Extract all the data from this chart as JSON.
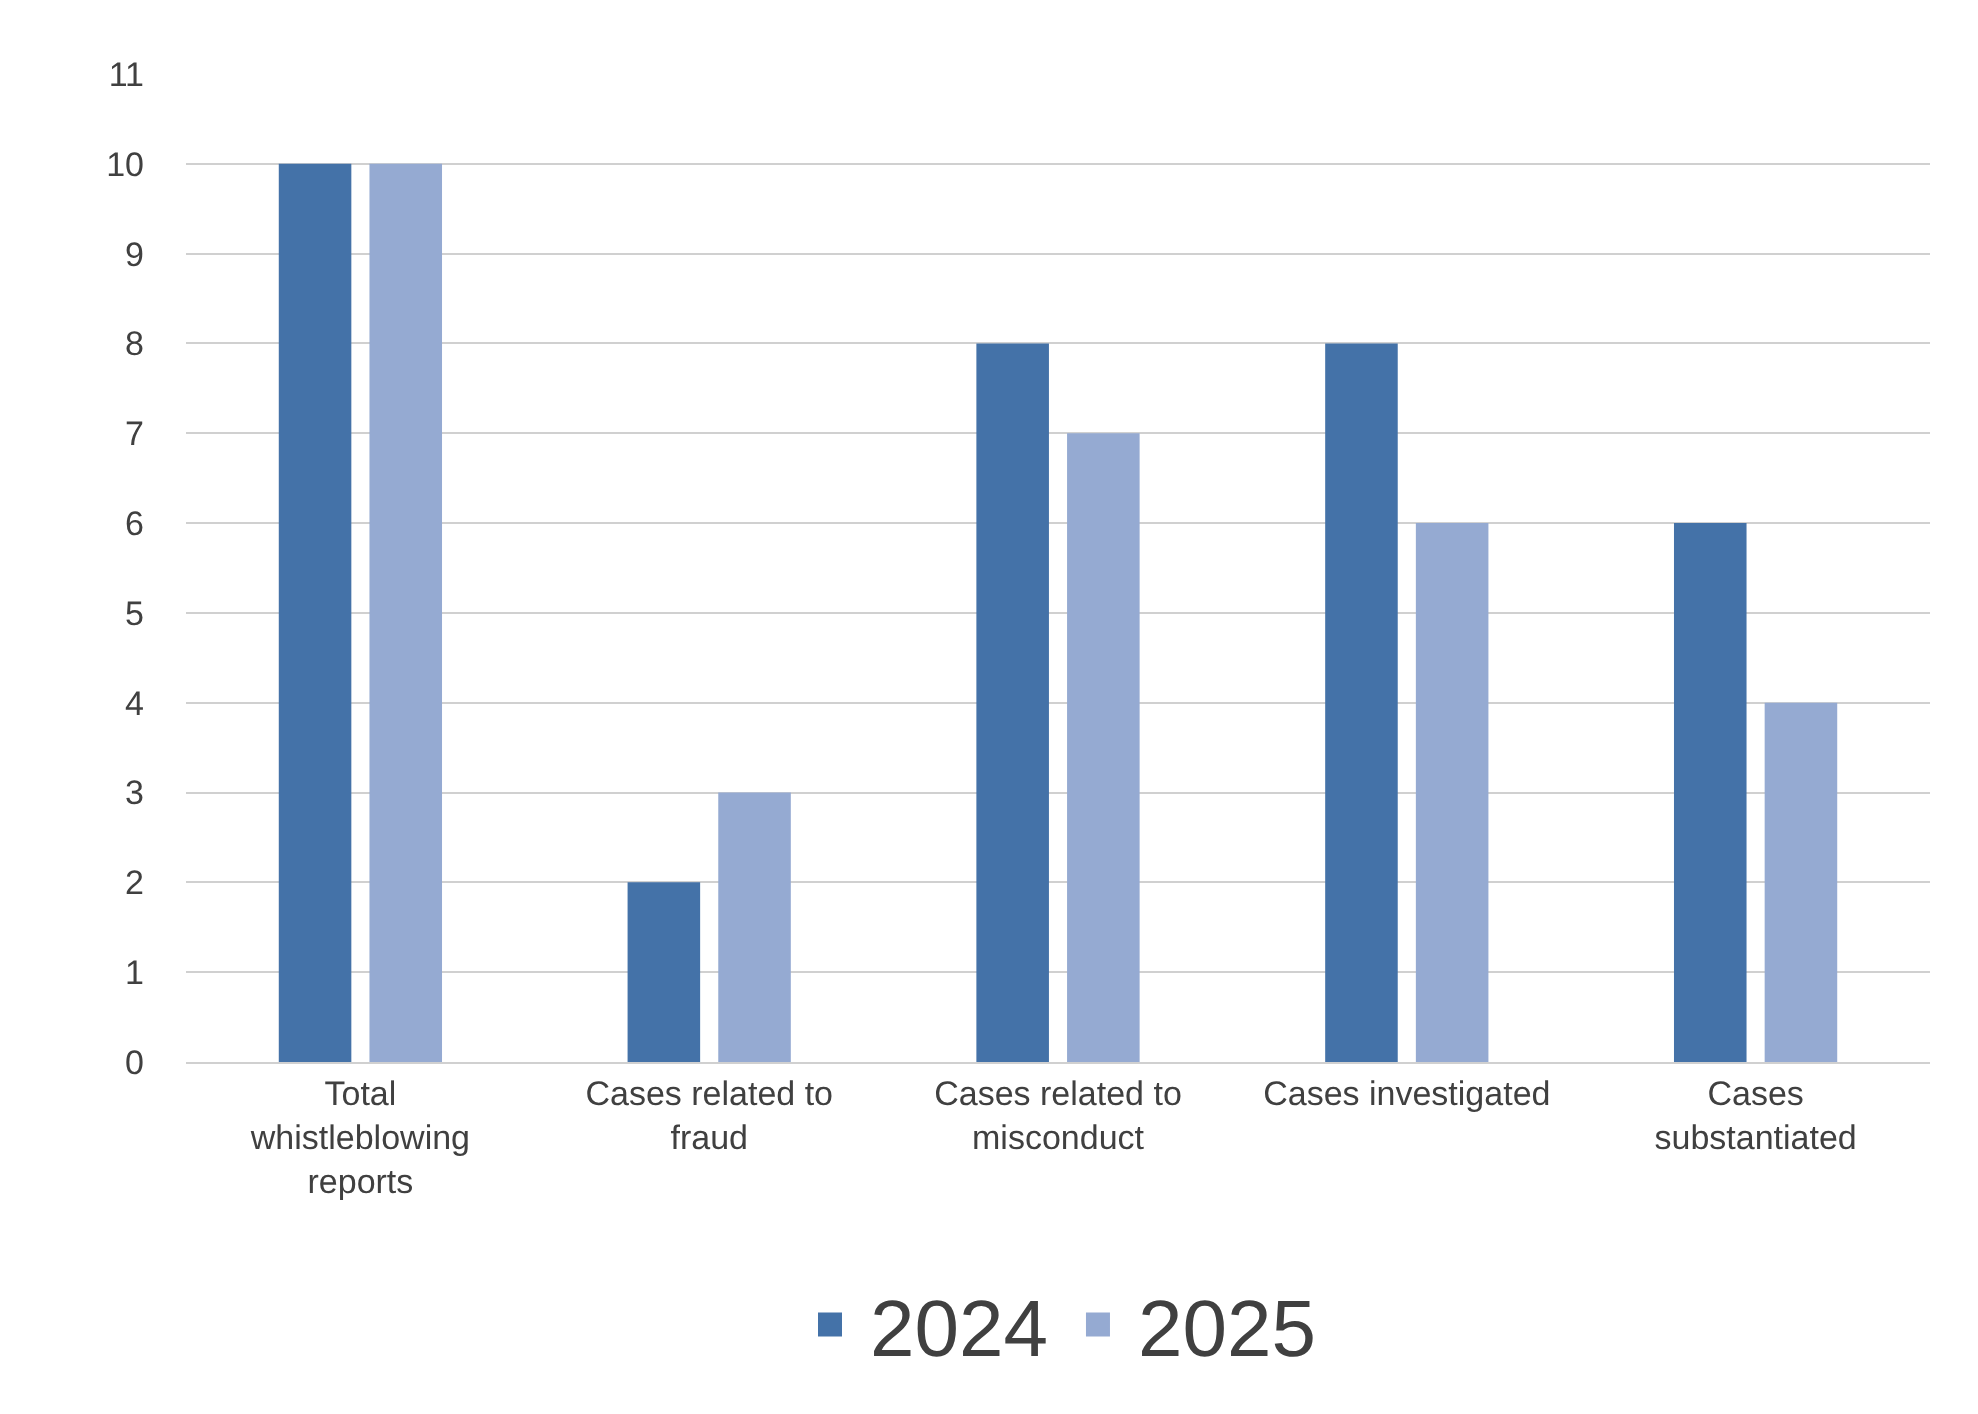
{
  "chart_data": {
    "type": "bar",
    "categories": [
      "Total whistleblowing reports",
      "Cases related to fraud",
      "Cases related to misconduct",
      "Cases investigated",
      "Cases substantiated"
    ],
    "series": [
      {
        "name": "2024",
        "color": "#4472a8",
        "values": [
          10,
          2,
          8,
          8,
          6
        ]
      },
      {
        "name": "2025",
        "color": "#95aad2",
        "values": [
          10,
          3,
          7,
          6,
          4
        ]
      }
    ],
    "ylim": [
      0,
      11
    ],
    "yticks": [
      0,
      1,
      2,
      3,
      4,
      5,
      6,
      7,
      8,
      9,
      10,
      11
    ],
    "grid": "y",
    "legend": "bottom"
  }
}
